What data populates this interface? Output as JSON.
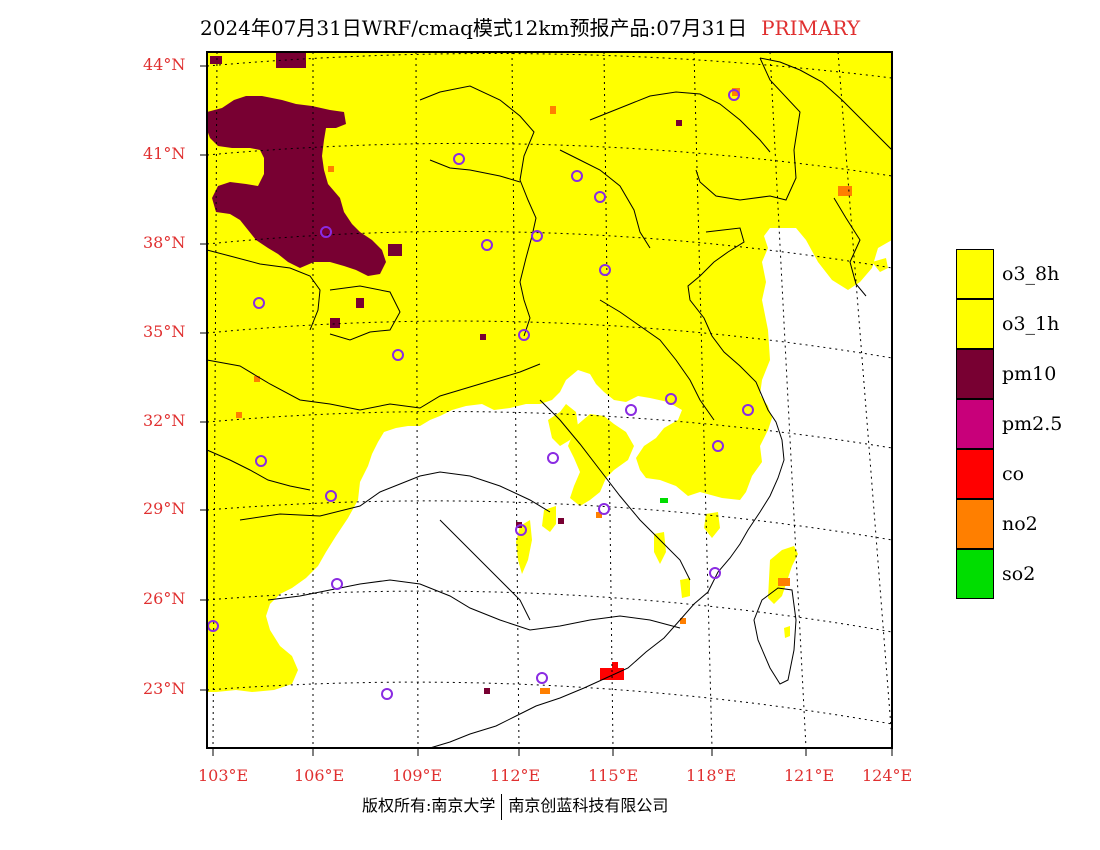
{
  "title": {
    "main": "2024年07月31日WRF/cmaq模式12km预报产品:07月31日",
    "mode": "PRIMARY"
  },
  "axes": {
    "lat_labels": [
      "44°N",
      "41°N",
      "38°N",
      "35°N",
      "32°N",
      "29°N",
      "26°N",
      "23°N"
    ],
    "lon_labels": [
      "103°E",
      "106°E",
      "109°E",
      "112°E",
      "115°E",
      "118°E",
      "121°E",
      "124°E"
    ]
  },
  "legend": [
    {
      "label": "o3_8h",
      "color": "#ffff00"
    },
    {
      "label": "o3_1h",
      "color": "#ffff00"
    },
    {
      "label": "pm10",
      "color": "#780032"
    },
    {
      "label": "pm2.5",
      "color": "#c8007a"
    },
    {
      "label": "co",
      "color": "#ff0000"
    },
    {
      "label": "no2",
      "color": "#ff7f00"
    },
    {
      "label": "so2",
      "color": "#00dd00"
    }
  ],
  "copyright": {
    "left": "版权所有:南京大学",
    "right": "南京创蓝科技有限公司"
  },
  "colors": {
    "o3": "#ffff00",
    "pm10": "#780032",
    "no2": "#ff7f00",
    "co": "#ff0000",
    "so2": "#00dd00",
    "station_marker": "#8a2be2",
    "label_text": "#e03030"
  }
}
